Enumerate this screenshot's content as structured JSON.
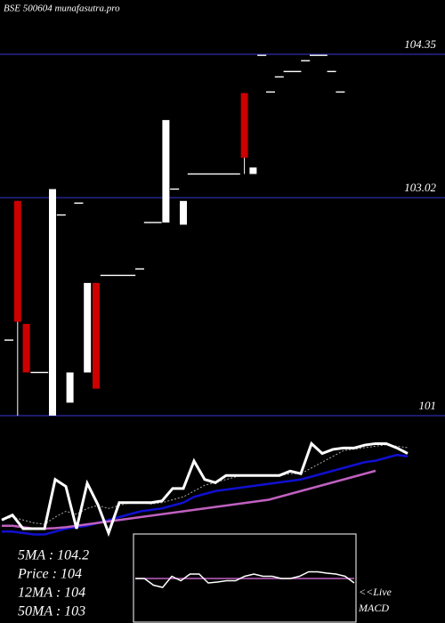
{
  "chart_data": {
    "type": "candlestick",
    "title": "BSE 500604  munafasutra.pro",
    "open": [
      101.7,
      102.99,
      101.85,
      101.4,
      101.4,
      101.0,
      102.86,
      101.12,
      102.97,
      101.4,
      102.23,
      102.3,
      102.3,
      102.3,
      102.3,
      102.36,
      102.79,
      102.79,
      102.79,
      103.1,
      102.77,
      103.24,
      103.24,
      103.24,
      103.24,
      103.24,
      103.24,
      103.99,
      103.24,
      104.34,
      104.0,
      104.14,
      104.19,
      104.19,
      104.29,
      104.34,
      104.34,
      104.19,
      104.0
    ],
    "high": [
      101.7,
      102.99,
      101.85,
      101.4,
      101.4,
      103.1,
      102.86,
      101.4,
      102.97,
      102.23,
      102.23,
      102.3,
      102.3,
      102.3,
      102.3,
      102.36,
      102.79,
      102.79,
      103.74,
      103.1,
      102.99,
      103.24,
      103.24,
      103.24,
      103.24,
      103.24,
      103.24,
      103.99,
      103.3,
      104.34,
      104.0,
      104.14,
      104.19,
      104.19,
      104.29,
      104.34,
      104.34,
      104.19,
      104.0
    ],
    "low": [
      101.7,
      101.0,
      101.4,
      101.4,
      101.4,
      101.0,
      102.86,
      101.12,
      102.97,
      101.4,
      101.25,
      102.3,
      102.3,
      102.3,
      102.3,
      102.36,
      102.79,
      102.79,
      102.79,
      103.1,
      102.77,
      103.24,
      103.24,
      103.24,
      103.24,
      103.24,
      103.24,
      103.24,
      103.24,
      104.34,
      104.0,
      104.14,
      104.19,
      104.19,
      104.29,
      104.34,
      104.34,
      104.19,
      104.0
    ],
    "close": [
      101.7,
      101.87,
      101.4,
      101.4,
      101.4,
      103.1,
      102.86,
      101.4,
      102.97,
      102.23,
      101.25,
      102.3,
      102.3,
      102.3,
      102.3,
      102.36,
      102.79,
      102.79,
      103.74,
      103.1,
      102.99,
      103.24,
      103.24,
      103.24,
      103.24,
      103.24,
      103.24,
      103.39,
      103.3,
      104.34,
      104.0,
      104.14,
      104.19,
      104.19,
      104.29,
      104.34,
      104.34,
      104.19,
      104.0
    ],
    "ylim": [
      100.975,
      104.853
    ],
    "yticks": [
      104.35,
      103.02,
      101
    ],
    "up_color": "#ffffff",
    "down_color": "#cc0000",
    "grid_color": "#1c1c6e",
    "ma_panel": {
      "ylim": [
        100.6,
        104.6
      ],
      "price_color": "#ffffff",
      "series": [
        {
          "color": "#aaaaaa",
          "dashed": true,
          "values": [
            101.7,
            101.8,
            101.7,
            101.6,
            101.55,
            101.8,
            102.0,
            101.9,
            102.1,
            102.2,
            102.1,
            102.2,
            102.3,
            102.3,
            102.25,
            102.3,
            102.4,
            102.5,
            102.7,
            102.9,
            103.0,
            103.1,
            103.2,
            103.25,
            103.25,
            103.24,
            103.24,
            103.3,
            103.3,
            103.5,
            103.7,
            103.9,
            104.1,
            104.15,
            104.2,
            104.25,
            104.3,
            104.25,
            104.2
          ]
        },
        {
          "color": "#1010d0",
          "dashed": false,
          "values": [
            101.3,
            101.3,
            101.25,
            101.2,
            101.2,
            101.3,
            101.4,
            101.45,
            101.5,
            101.6,
            101.7,
            101.8,
            101.9,
            102.0,
            102.05,
            102.1,
            102.2,
            102.3,
            102.5,
            102.6,
            102.7,
            102.75,
            102.8,
            102.85,
            102.9,
            102.95,
            103.0,
            103.05,
            103.1,
            103.2,
            103.3,
            103.4,
            103.5,
            103.6,
            103.7,
            103.75,
            103.85,
            103.95,
            103.9
          ]
        },
        {
          "color": "#c060c0",
          "dashed": false,
          "values": [
            101.5,
            101.5,
            101.45,
            101.4,
            101.4,
            101.42,
            101.45,
            101.5,
            101.55,
            101.6,
            101.65,
            101.7,
            101.75,
            101.8,
            101.85,
            101.9,
            101.95,
            102.0,
            102.05,
            102.1,
            102.15,
            102.2,
            102.25,
            102.3,
            102.35,
            102.4,
            102.5,
            102.6,
            102.7,
            102.8,
            102.9,
            103.0,
            103.1,
            103.2,
            103.3,
            103.4,
            null,
            null,
            null
          ]
        }
      ]
    },
    "stats": [
      "5MA : 104.2",
      "Price  : 104",
      "12MA : 104",
      "50MA : 103"
    ],
    "macd": {
      "label": [
        "<<Live",
        "MACD"
      ],
      "ylim": [
        -1,
        1
      ],
      "macd_color": "#ffffff",
      "signal_color": "#c060c0",
      "macd_values": [
        0,
        0,
        -0.15,
        -0.2,
        0.05,
        -0.05,
        0.1,
        0.1,
        -0.1,
        -0.08,
        -0.05,
        -0.05,
        0.05,
        0.1,
        0.05,
        0.05,
        0,
        0,
        0.05,
        0.15,
        0.15,
        0.12,
        0.1,
        0.05,
        -0.1
      ],
      "signal_values": [
        0,
        0,
        0,
        0,
        0,
        0,
        0,
        0,
        0,
        0,
        0,
        0,
        0,
        0,
        0,
        0,
        0,
        0,
        0,
        0,
        0,
        0,
        0,
        0,
        0
      ]
    }
  }
}
